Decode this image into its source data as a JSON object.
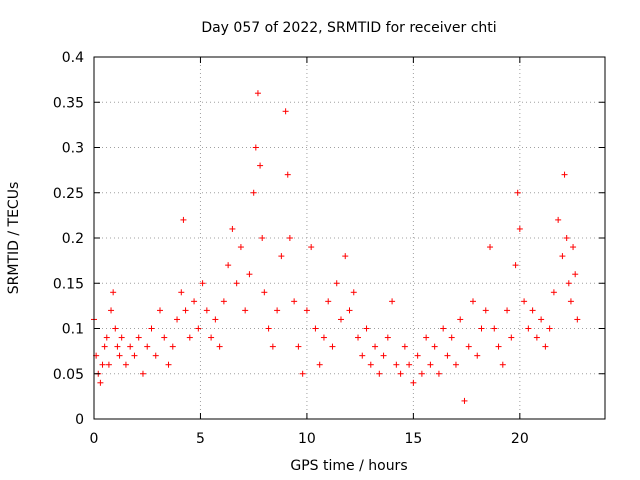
{
  "chart_data": {
    "type": "scatter",
    "title": "Day 057 of 2022, SRMTID for receiver chti",
    "xlabel": "GPS time / hours",
    "ylabel": "SRMTID / TECUs",
    "xlim": [
      0,
      24
    ],
    "ylim": [
      0,
      0.4
    ],
    "xticks": [
      0,
      5,
      10,
      15,
      20
    ],
    "xtick_labels": [
      "0",
      "5",
      "10",
      "15",
      "20"
    ],
    "yticks": [
      0,
      0.05,
      0.1,
      0.15,
      0.2,
      0.25,
      0.3,
      0.35,
      0.4
    ],
    "ytick_labels": [
      "0",
      "0.05",
      "0.1",
      "0.15",
      "0.2",
      "0.25",
      "0.3",
      "0.35",
      "0.4"
    ],
    "grid": true,
    "marker": "+",
    "color": "#ff0000",
    "series": [
      {
        "name": "SRMTID",
        "points": [
          [
            0.0,
            0.11
          ],
          [
            0.1,
            0.07
          ],
          [
            0.2,
            0.05
          ],
          [
            0.3,
            0.04
          ],
          [
            0.4,
            0.06
          ],
          [
            0.5,
            0.08
          ],
          [
            0.6,
            0.09
          ],
          [
            0.7,
            0.06
          ],
          [
            0.8,
            0.12
          ],
          [
            0.9,
            0.14
          ],
          [
            1.0,
            0.1
          ],
          [
            1.1,
            0.08
          ],
          [
            1.2,
            0.07
          ],
          [
            1.3,
            0.09
          ],
          [
            1.5,
            0.06
          ],
          [
            1.7,
            0.08
          ],
          [
            1.9,
            0.07
          ],
          [
            2.1,
            0.09
          ],
          [
            2.3,
            0.05
          ],
          [
            2.5,
            0.08
          ],
          [
            2.7,
            0.1
          ],
          [
            2.9,
            0.07
          ],
          [
            3.1,
            0.12
          ],
          [
            3.3,
            0.09
          ],
          [
            3.5,
            0.06
          ],
          [
            3.7,
            0.08
          ],
          [
            3.9,
            0.11
          ],
          [
            4.1,
            0.14
          ],
          [
            4.2,
            0.22
          ],
          [
            4.3,
            0.12
          ],
          [
            4.5,
            0.09
          ],
          [
            4.7,
            0.13
          ],
          [
            4.9,
            0.1
          ],
          [
            5.1,
            0.15
          ],
          [
            5.3,
            0.12
          ],
          [
            5.5,
            0.09
          ],
          [
            5.7,
            0.11
          ],
          [
            5.9,
            0.08
          ],
          [
            6.1,
            0.13
          ],
          [
            6.3,
            0.17
          ],
          [
            6.5,
            0.21
          ],
          [
            6.7,
            0.15
          ],
          [
            6.9,
            0.19
          ],
          [
            7.1,
            0.12
          ],
          [
            7.3,
            0.16
          ],
          [
            7.5,
            0.25
          ],
          [
            7.6,
            0.3
          ],
          [
            7.7,
            0.36
          ],
          [
            7.8,
            0.28
          ],
          [
            7.9,
            0.2
          ],
          [
            8.0,
            0.14
          ],
          [
            8.2,
            0.1
          ],
          [
            8.4,
            0.08
          ],
          [
            8.6,
            0.12
          ],
          [
            8.8,
            0.18
          ],
          [
            9.0,
            0.34
          ],
          [
            9.1,
            0.27
          ],
          [
            9.2,
            0.2
          ],
          [
            9.4,
            0.13
          ],
          [
            9.6,
            0.08
          ],
          [
            9.8,
            0.05
          ],
          [
            10.0,
            0.12
          ],
          [
            10.2,
            0.19
          ],
          [
            10.4,
            0.1
          ],
          [
            10.6,
            0.06
          ],
          [
            10.8,
            0.09
          ],
          [
            11.0,
            0.13
          ],
          [
            11.2,
            0.08
          ],
          [
            11.4,
            0.15
          ],
          [
            11.6,
            0.11
          ],
          [
            11.8,
            0.18
          ],
          [
            12.0,
            0.12
          ],
          [
            12.2,
            0.14
          ],
          [
            12.4,
            0.09
          ],
          [
            12.6,
            0.07
          ],
          [
            12.8,
            0.1
          ],
          [
            13.0,
            0.06
          ],
          [
            13.2,
            0.08
          ],
          [
            13.4,
            0.05
          ],
          [
            13.6,
            0.07
          ],
          [
            13.8,
            0.09
          ],
          [
            14.0,
            0.13
          ],
          [
            14.2,
            0.06
          ],
          [
            14.4,
            0.05
          ],
          [
            14.6,
            0.08
          ],
          [
            14.8,
            0.06
          ],
          [
            15.0,
            0.04
          ],
          [
            15.2,
            0.07
          ],
          [
            15.4,
            0.05
          ],
          [
            15.6,
            0.09
          ],
          [
            15.8,
            0.06
          ],
          [
            16.0,
            0.08
          ],
          [
            16.2,
            0.05
          ],
          [
            16.4,
            0.1
          ],
          [
            16.6,
            0.07
          ],
          [
            16.8,
            0.09
          ],
          [
            17.0,
            0.06
          ],
          [
            17.2,
            0.11
          ],
          [
            17.4,
            0.02
          ],
          [
            17.6,
            0.08
          ],
          [
            17.8,
            0.13
          ],
          [
            18.0,
            0.07
          ],
          [
            18.2,
            0.1
          ],
          [
            18.4,
            0.12
          ],
          [
            18.6,
            0.19
          ],
          [
            18.8,
            0.1
          ],
          [
            19.0,
            0.08
          ],
          [
            19.2,
            0.06
          ],
          [
            19.4,
            0.12
          ],
          [
            19.6,
            0.09
          ],
          [
            19.8,
            0.17
          ],
          [
            19.9,
            0.25
          ],
          [
            20.0,
            0.21
          ],
          [
            20.2,
            0.13
          ],
          [
            20.4,
            0.1
          ],
          [
            20.6,
            0.12
          ],
          [
            20.8,
            0.09
          ],
          [
            21.0,
            0.11
          ],
          [
            21.2,
            0.08
          ],
          [
            21.4,
            0.1
          ],
          [
            21.6,
            0.14
          ],
          [
            21.8,
            0.22
          ],
          [
            22.0,
            0.18
          ],
          [
            22.1,
            0.27
          ],
          [
            22.2,
            0.2
          ],
          [
            22.3,
            0.15
          ],
          [
            22.4,
            0.13
          ],
          [
            22.5,
            0.19
          ],
          [
            22.6,
            0.16
          ],
          [
            22.7,
            0.11
          ]
        ]
      }
    ]
  }
}
